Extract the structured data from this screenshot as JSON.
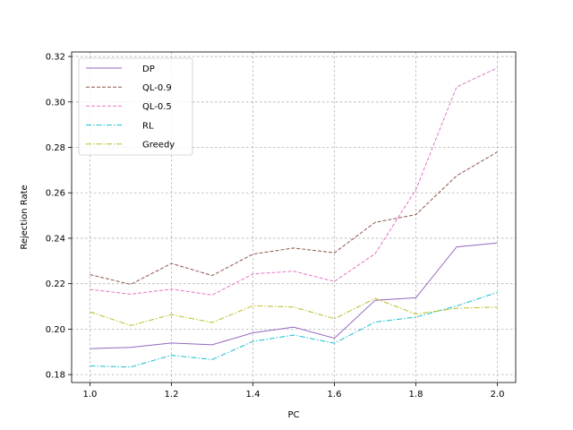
{
  "chart_data": {
    "type": "line",
    "title": "",
    "xlabel": "PC",
    "ylabel": "Rejection Rate",
    "xlim": [
      0.955,
      2.045
    ],
    "ylim": [
      0.1765,
      0.322
    ],
    "xticks": [
      1.0,
      1.2,
      1.4,
      1.6,
      1.8,
      2.0
    ],
    "xtick_labels": [
      "1.0",
      "1.2",
      "1.4",
      "1.6",
      "1.8",
      "2.0"
    ],
    "yticks": [
      0.18,
      0.2,
      0.22,
      0.24,
      0.26,
      0.28,
      0.3,
      0.32
    ],
    "ytick_labels": [
      "0.18",
      "0.20",
      "0.22",
      "0.24",
      "0.26",
      "0.28",
      "0.30",
      "0.32"
    ],
    "grid": true,
    "legend_position": "top-left",
    "x": [
      1.0,
      1.1,
      1.2,
      1.3,
      1.4,
      1.5,
      1.6,
      1.7,
      1.8,
      1.9,
      2.0
    ],
    "series": [
      {
        "name": "DP",
        "color": "#9467bd",
        "dash": "solid",
        "values": [
          0.1914,
          0.192,
          0.1939,
          0.1931,
          0.1984,
          0.2009,
          0.196,
          0.2127,
          0.2138,
          0.2362,
          0.2379
        ]
      },
      {
        "name": "QL-0.9",
        "color": "#8c564b",
        "dash": "dashed",
        "values": [
          0.224,
          0.2197,
          0.2289,
          0.2236,
          0.233,
          0.2357,
          0.2336,
          0.247,
          0.2504,
          0.2675,
          0.278
        ]
      },
      {
        "name": "QL-0.5",
        "color": "#e377c2",
        "dash": "dashed",
        "values": [
          0.2175,
          0.2154,
          0.2176,
          0.215,
          0.2243,
          0.2255,
          0.221,
          0.2332,
          0.2614,
          0.3066,
          0.315
        ]
      },
      {
        "name": "RL",
        "color": "#17becf",
        "dash": "dashdot",
        "values": [
          0.1838,
          0.1833,
          0.1885,
          0.1866,
          0.1946,
          0.1974,
          0.1938,
          0.2031,
          0.2053,
          0.2102,
          0.2162
        ]
      },
      {
        "name": "Greedy",
        "color": "#bcbd22",
        "dash": "dashdot",
        "values": [
          0.2076,
          0.2016,
          0.2064,
          0.2029,
          0.2103,
          0.2097,
          0.2046,
          0.2135,
          0.2066,
          0.2092,
          0.2097
        ]
      }
    ]
  }
}
